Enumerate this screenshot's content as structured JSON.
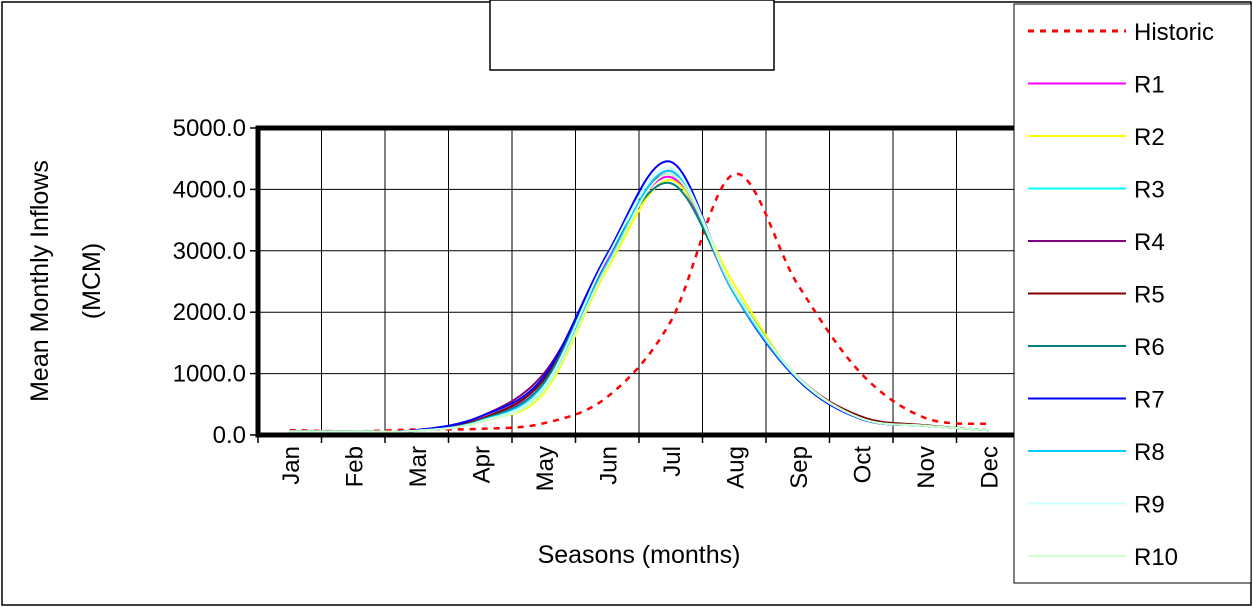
{
  "chart_data": {
    "type": "line",
    "title": "",
    "xlabel": "Seasons (months)",
    "ylabel_line1": "Mean Monthly Inflows",
    "ylabel_line2": "(MCM)",
    "categories": [
      "Jan",
      "Feb",
      "Mar",
      "Apr",
      "May",
      "Jun",
      "Jul",
      "Aug",
      "Sep",
      "Oct",
      "Nov",
      "Dec"
    ],
    "yticks": [
      "0.0",
      "1000.0",
      "2000.0",
      "3000.0",
      "4000.0",
      "5000.0"
    ],
    "ylim": [
      0,
      5000
    ],
    "grid": true,
    "legend_position": "right",
    "series": [
      {
        "name": "Historic",
        "color": "#ff0000",
        "dashed": true,
        "values": [
          80,
          60,
          90,
          100,
          190,
          620,
          1850,
          4250,
          2450,
          1000,
          280,
          180
        ]
      },
      {
        "name": "R1",
        "color": "#ff00ff",
        "dashed": false,
        "values": [
          60,
          60,
          70,
          230,
          900,
          2850,
          4200,
          2300,
          950,
          270,
          150,
          80
        ]
      },
      {
        "name": "R2",
        "color": "#ffff00",
        "dashed": false,
        "values": [
          60,
          60,
          70,
          230,
          680,
          2700,
          4150,
          2450,
          920,
          280,
          160,
          80
        ]
      },
      {
        "name": "R3",
        "color": "#00ffff",
        "dashed": false,
        "values": [
          60,
          60,
          70,
          220,
          750,
          2750,
          4250,
          2300,
          900,
          260,
          150,
          80
        ]
      },
      {
        "name": "R4",
        "color": "#800080",
        "dashed": false,
        "values": [
          60,
          60,
          80,
          300,
          1000,
          2800,
          4300,
          2300,
          950,
          270,
          150,
          80
        ]
      },
      {
        "name": "R5",
        "color": "#800000",
        "dashed": false,
        "values": [
          60,
          60,
          70,
          260,
          900,
          2800,
          4250,
          2350,
          950,
          300,
          160,
          80
        ]
      },
      {
        "name": "R6",
        "color": "#008080",
        "dashed": false,
        "values": [
          60,
          60,
          70,
          240,
          850,
          2900,
          4100,
          2350,
          930,
          270,
          150,
          80
        ]
      },
      {
        "name": "R7",
        "color": "#0000ff",
        "dashed": false,
        "values": [
          60,
          60,
          80,
          300,
          950,
          2950,
          4450,
          2300,
          900,
          260,
          150,
          80
        ]
      },
      {
        "name": "R8",
        "color": "#00ccff",
        "dashed": false,
        "values": [
          60,
          60,
          70,
          230,
          800,
          2800,
          4300,
          2300,
          920,
          270,
          150,
          80
        ]
      },
      {
        "name": "R9",
        "color": "#ccffff",
        "dashed": false,
        "values": [
          60,
          60,
          70,
          220,
          780,
          2900,
          4350,
          2350,
          950,
          270,
          150,
          80
        ]
      },
      {
        "name": "R10",
        "color": "#ccffcc",
        "dashed": false,
        "values": [
          60,
          60,
          70,
          210,
          720,
          2750,
          4250,
          2350,
          930,
          270,
          150,
          80
        ]
      }
    ]
  }
}
